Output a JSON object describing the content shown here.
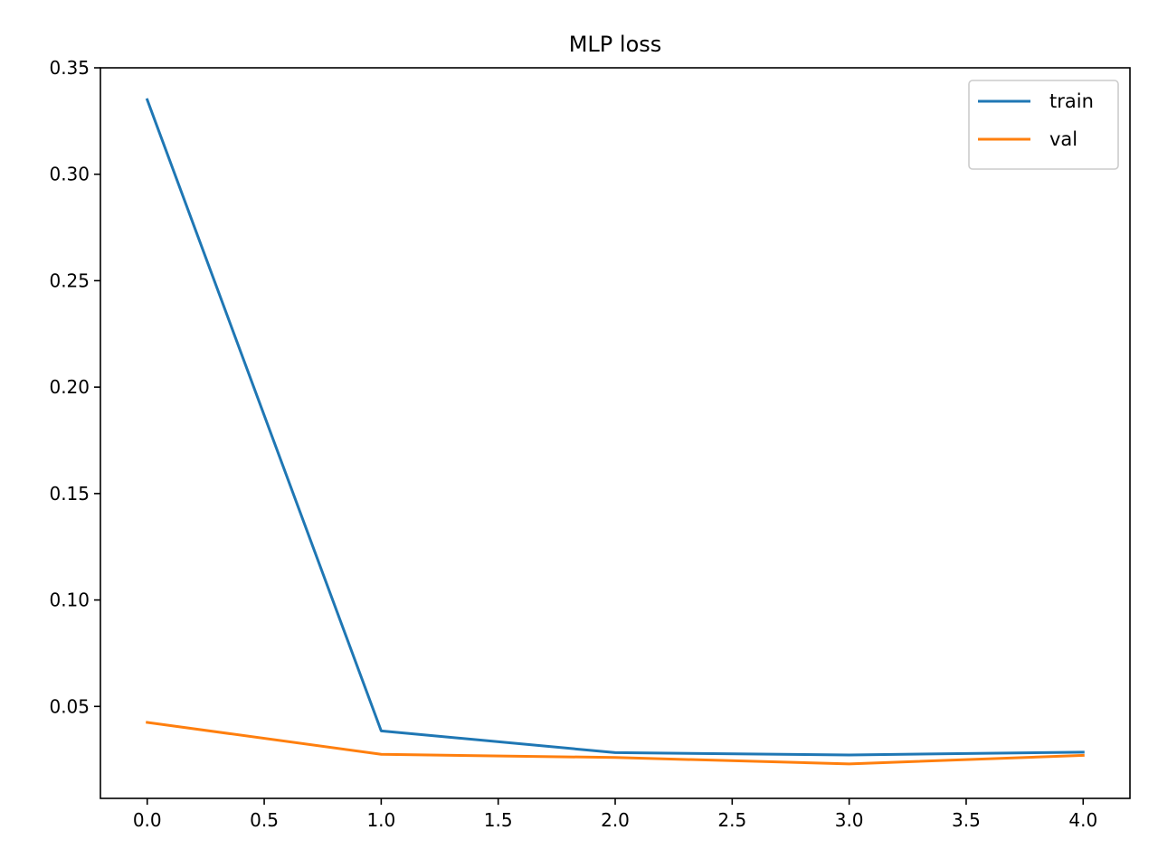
{
  "chart_data": {
    "type": "line",
    "title": "MLP loss",
    "xlabel": "",
    "ylabel": "",
    "x": [
      0,
      1,
      2,
      3,
      4
    ],
    "xlim": [
      -0.2,
      4.2
    ],
    "ylim": [
      0.0068,
      0.35
    ],
    "xticks": [
      0.0,
      0.5,
      1.0,
      1.5,
      2.0,
      2.5,
      3.0,
      3.5,
      4.0
    ],
    "xtick_labels": [
      "0.0",
      "0.5",
      "1.0",
      "1.5",
      "2.0",
      "2.5",
      "3.0",
      "3.5",
      "4.0"
    ],
    "yticks": [
      0.05,
      0.1,
      0.15,
      0.2,
      0.25,
      0.3,
      0.35
    ],
    "ytick_labels": [
      "0.05",
      "0.10",
      "0.15",
      "0.20",
      "0.25",
      "0.30",
      "0.35"
    ],
    "grid": false,
    "legend_position": "top-right",
    "series": [
      {
        "name": "train",
        "color": "#1f77b4",
        "values": [
          0.335,
          0.0385,
          0.0283,
          0.0272,
          0.0285
        ]
      },
      {
        "name": "val",
        "color": "#ff7f0e",
        "values": [
          0.0425,
          0.0275,
          0.026,
          0.023,
          0.027
        ]
      }
    ]
  }
}
